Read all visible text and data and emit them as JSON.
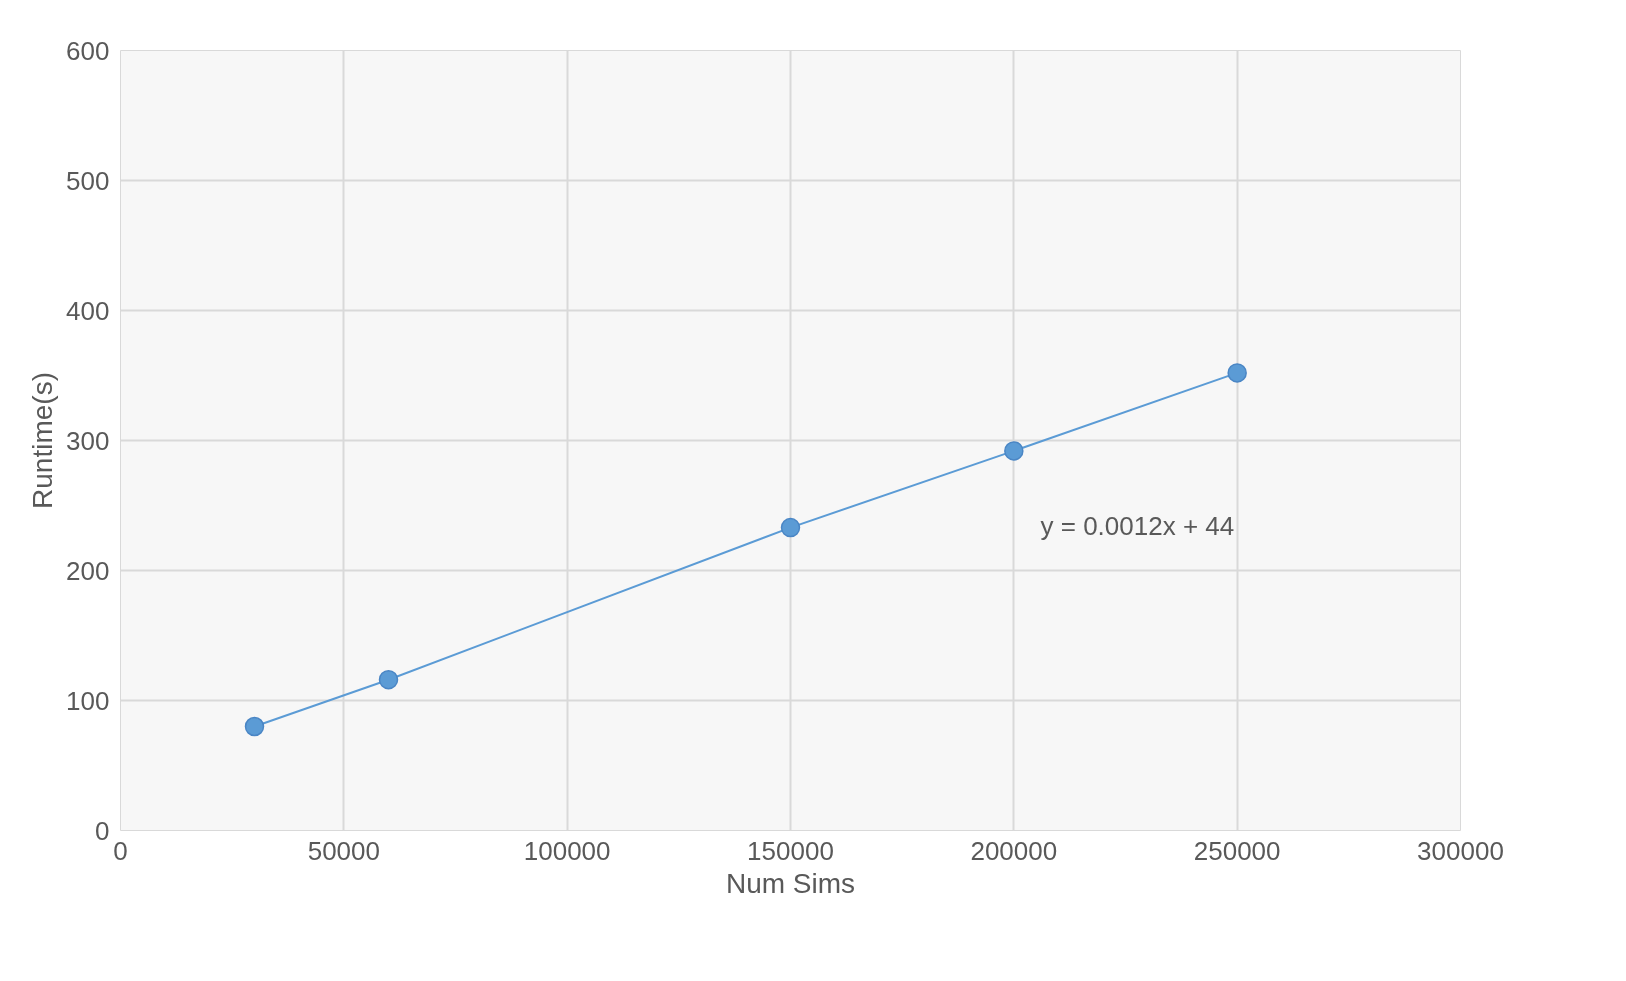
{
  "chart_data": {
    "type": "line",
    "xlabel": "Num Sims",
    "ylabel": "Runtime(s)",
    "x": [
      30000,
      60000,
      150000,
      200000,
      250000
    ],
    "series": [
      {
        "color": "#5b9bd5",
        "values": [
          80,
          116,
          233,
          292,
          352
        ]
      }
    ],
    "xlim": [
      0,
      300000
    ],
    "xticks": [
      0,
      50000,
      100000,
      150000,
      200000,
      250000,
      300000
    ],
    "ylim": [
      0,
      600
    ],
    "yticks": [
      0,
      100,
      200,
      300,
      400,
      500,
      600
    ],
    "grid": true,
    "marker": "circle",
    "line_style": "solid",
    "annotations": [
      "y = 0.0012x + 44"
    ]
  }
}
